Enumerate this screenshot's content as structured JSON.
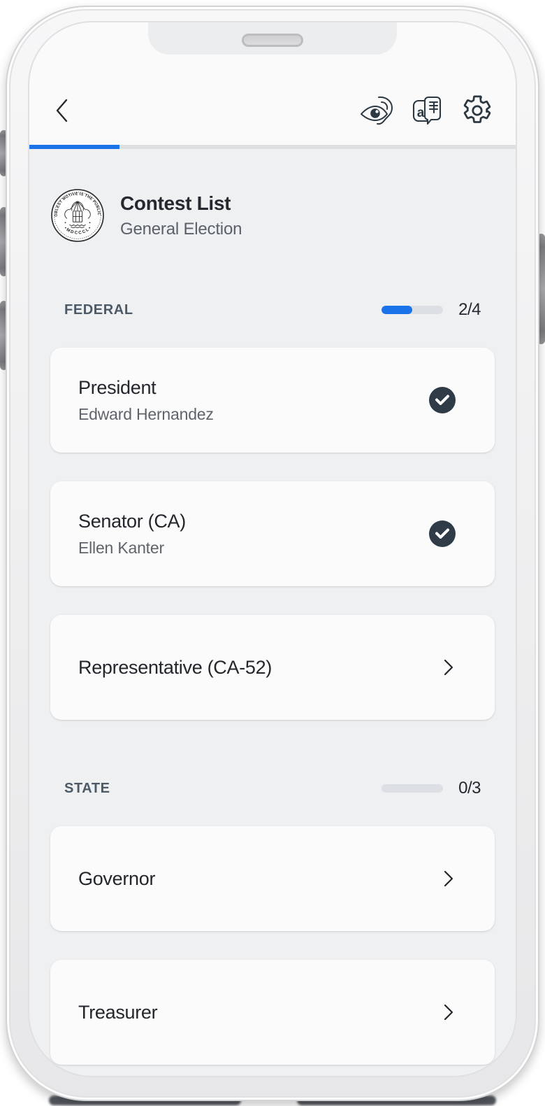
{
  "colors": {
    "accent": "#1a73e8",
    "check_badge": "#2f3b47",
    "screen_background": "#eef0f2",
    "card_background": "#fbfbfc"
  },
  "page_progress": {
    "percent": 18.6
  },
  "election": {
    "title": "Contest List",
    "subtitle": "General Election",
    "seal": {
      "motto": "THE NOBLEST MOTIVE IS THE PUBLIC GOOD",
      "year": "• M D C C C L •"
    }
  },
  "sections": [
    {
      "label": "FEDERAL",
      "count": "2/4",
      "percent": 50,
      "cards": [
        {
          "title": "President",
          "subtitle": "Edward Hernandez",
          "status": "completed"
        },
        {
          "title": "Senator (CA)",
          "subtitle": "Ellen Kanter",
          "status": "completed"
        },
        {
          "title": "Representative (CA-52)",
          "status": "not_started"
        }
      ]
    },
    {
      "label": "STATE",
      "count": "0/3",
      "percent": 0,
      "cards": [
        {
          "title": "Governor",
          "status": "not_started"
        },
        {
          "title": "Treasurer",
          "status": "not_started"
        }
      ]
    }
  ]
}
